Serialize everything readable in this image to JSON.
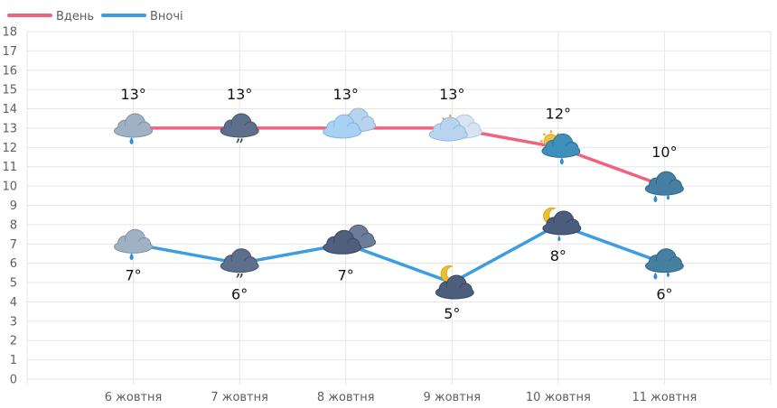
{
  "chart_data": {
    "type": "line",
    "categories": [
      "6 жовтня",
      "7 жовтня",
      "8 жовтня",
      "9 жовтня",
      "10 жовтня",
      "11 жовтня"
    ],
    "ylim": [
      0,
      18
    ],
    "yticks": [
      0,
      1,
      2,
      3,
      4,
      5,
      6,
      7,
      8,
      9,
      10,
      11,
      12,
      13,
      14,
      15,
      16,
      17,
      18
    ],
    "grid": true,
    "legend_position": "top-left",
    "series": [
      {
        "name": "Вдень",
        "color": "#f0637f",
        "values": [
          13,
          13,
          13,
          13,
          12,
          10
        ],
        "labels": [
          "13°",
          "13°",
          "13°",
          "13°",
          "12°",
          "10°"
        ],
        "icons": [
          "cloud-rain-icon",
          "cloud-drizzle-icon",
          "cloudy-icon",
          "partly-sunny-icon",
          "sun-rain-icon",
          "cloud-heavy-rain-icon"
        ]
      },
      {
        "name": "Вночі",
        "color": "#3d9de0",
        "values": [
          7,
          6,
          7,
          5,
          8,
          6
        ],
        "labels": [
          "7°",
          "6°",
          "7°",
          "5°",
          "8°",
          "6°"
        ],
        "icons": [
          "cloud-rain-icon",
          "cloud-drizzle-icon",
          "overcast-icon",
          "moon-cloud-icon",
          "moon-rain-icon",
          "cloud-heavy-rain-icon"
        ]
      }
    ]
  }
}
